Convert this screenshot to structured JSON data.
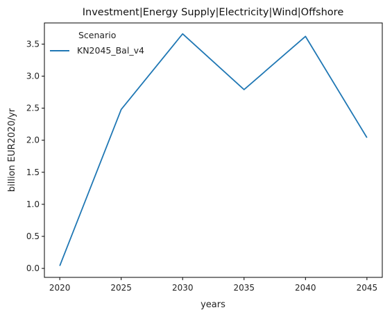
{
  "chart_data": {
    "type": "line",
    "title": "Investment|Energy Supply|Electricity|Wind|Offshore",
    "xlabel": "years",
    "ylabel": "billion EUR2020/yr",
    "x": [
      2020,
      2025,
      2030,
      2035,
      2040,
      2045
    ],
    "x_ticks": [
      "2020",
      "2025",
      "2030",
      "2035",
      "2040",
      "2045"
    ],
    "y_ticks": [
      "0.0",
      "0.5",
      "1.0",
      "1.5",
      "2.0",
      "2.5",
      "3.0",
      "3.5"
    ],
    "xlim": [
      2018.75,
      2046.25
    ],
    "ylim": [
      -0.14,
      3.83
    ],
    "grid": false,
    "legend": {
      "title": "Scenario",
      "placement": "top-left"
    },
    "series": [
      {
        "name": "KN2045_Bal_v4",
        "color": "#1f77b4",
        "values": [
          0.04,
          2.48,
          3.66,
          2.79,
          3.62,
          2.04
        ]
      }
    ]
  }
}
